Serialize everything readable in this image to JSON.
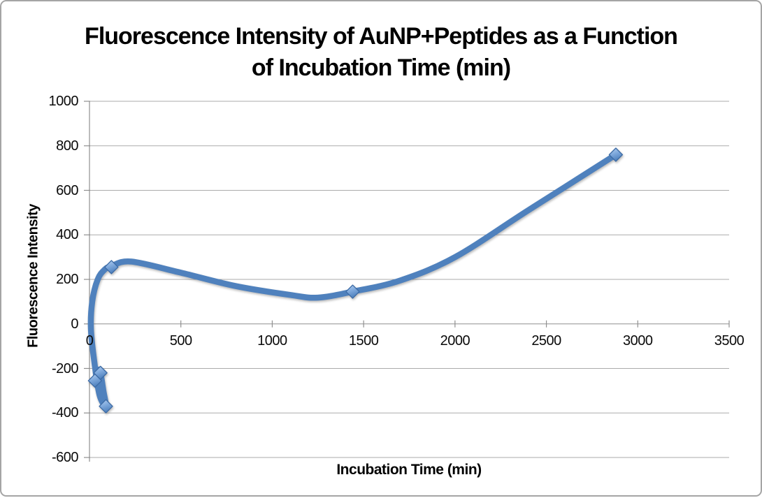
{
  "frame": {
    "background": "#ffffff",
    "border_color": "#a5a5a5"
  },
  "chart_data": {
    "type": "line",
    "title": "Fluorescence Intensity of AuNP+Peptides as a Function of Incubation Time (min)",
    "title_line1": "Fluorescence Intensity of AuNP+Peptides as a Function",
    "title_line2": "of Incubation Time (min)",
    "xlabel": "Incubation Time (min)",
    "ylabel": "Fluorescence Intensity",
    "xlim": [
      0,
      3500
    ],
    "ylim": [
      -600,
      1000
    ],
    "x_ticks": [
      0,
      500,
      1000,
      1500,
      2000,
      2500,
      3000,
      3500
    ],
    "y_ticks": [
      1000,
      800,
      600,
      400,
      200,
      0,
      -200,
      -400,
      -600
    ],
    "grid": "horizontal-only",
    "legend": "none",
    "line_style": "smoothed",
    "marker": "diamond",
    "colors": {
      "line": "#4f81bd",
      "marker_fill_light": "#aecbee",
      "marker_fill_dark": "#5584c2",
      "marker_border": "#3d6ba5",
      "gridline": "#ababab",
      "axis": "#8f8f8f",
      "text": "#000000"
    },
    "series": [
      {
        "points": [
          [
            30,
            -255
          ],
          [
            60,
            -220
          ],
          [
            90,
            -370
          ],
          [
            120,
            255
          ],
          [
            1440,
            145
          ],
          [
            2880,
            760
          ]
        ]
      }
    ],
    "curve_trace": [
      [
        30,
        -255
      ],
      [
        46,
        -208
      ],
      [
        60,
        -220
      ],
      [
        76,
        -300
      ],
      [
        90,
        -370
      ],
      [
        55,
        -320
      ],
      [
        28,
        -180
      ],
      [
        8,
        -25
      ],
      [
        15,
        100
      ],
      [
        45,
        200
      ],
      [
        82,
        243
      ],
      [
        120,
        260
      ],
      [
        230,
        280
      ],
      [
        500,
        230
      ],
      [
        800,
        170
      ],
      [
        1100,
        130
      ],
      [
        1250,
        118
      ],
      [
        1440,
        145
      ],
      [
        1700,
        195
      ],
      [
        2000,
        300
      ],
      [
        2400,
        510
      ],
      [
        2880,
        760
      ]
    ]
  }
}
